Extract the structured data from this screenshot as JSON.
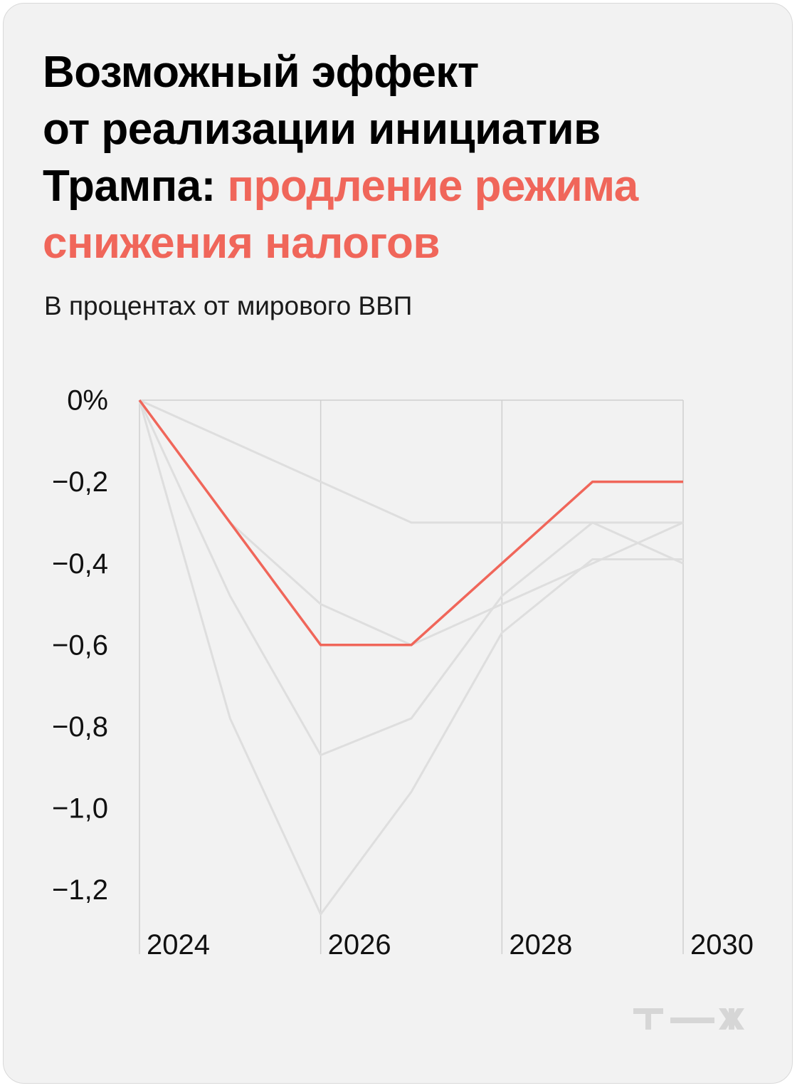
{
  "header": {
    "title_line1": "Возможный эффект",
    "title_line2": "от реализации инициатив",
    "title_line3_black": "Трампа: ",
    "title_line3_red": "продление режима",
    "title_line4_red": "снижения налогов",
    "subtitle": "В процентах от мирового ВВП"
  },
  "colors": {
    "accent": "#f0665a",
    "background_lines": "#dedede",
    "grid": "#cfcfcf",
    "card": "#f2f2f2"
  },
  "logo": "т—ж",
  "chart_data": {
    "type": "line",
    "title": "Возможный эффект от реализации инициатив Трампа: продление режима снижения налогов",
    "subtitle": "В процентах от мирового ВВП",
    "xlabel": "",
    "ylabel": "",
    "x": [
      2024,
      2025,
      2026,
      2027,
      2028,
      2029,
      2030
    ],
    "xlim": [
      2024,
      2030
    ],
    "ylim": [
      -1.26,
      0
    ],
    "x_ticks": [
      {
        "value": 2024,
        "label": "2024"
      },
      {
        "value": 2026,
        "label": "2026"
      },
      {
        "value": 2028,
        "label": "2028"
      },
      {
        "value": 2030,
        "label": "2030"
      }
    ],
    "y_ticks": [
      {
        "value": 0,
        "label": "0%"
      },
      {
        "value": -0.2,
        "label": "−0,2"
      },
      {
        "value": -0.4,
        "label": "−0,4"
      },
      {
        "value": -0.6,
        "label": "−0,6"
      },
      {
        "value": -0.8,
        "label": "−0,8"
      },
      {
        "value": -1.0,
        "label": "−1,0"
      },
      {
        "value": -1.2,
        "label": "−1,2"
      }
    ],
    "grid": "vertical",
    "legend": "none",
    "highlighted_series": {
      "values": [
        0,
        -0.3,
        -0.6,
        -0.6,
        -0.4,
        -0.2,
        -0.2
      ]
    },
    "background_series": [
      {
        "values": [
          0,
          -0.1,
          -0.2,
          -0.3,
          -0.3,
          -0.3,
          -0.3
        ]
      },
      {
        "values": [
          0,
          -0.3,
          -0.5,
          -0.6,
          -0.5,
          -0.4,
          -0.3
        ]
      },
      {
        "values": [
          0,
          -0.48,
          -0.87,
          -0.78,
          -0.48,
          -0.3,
          -0.4
        ]
      },
      {
        "values": [
          0,
          -0.78,
          -1.26,
          -0.96,
          -0.57,
          -0.39,
          -0.39
        ]
      }
    ]
  }
}
